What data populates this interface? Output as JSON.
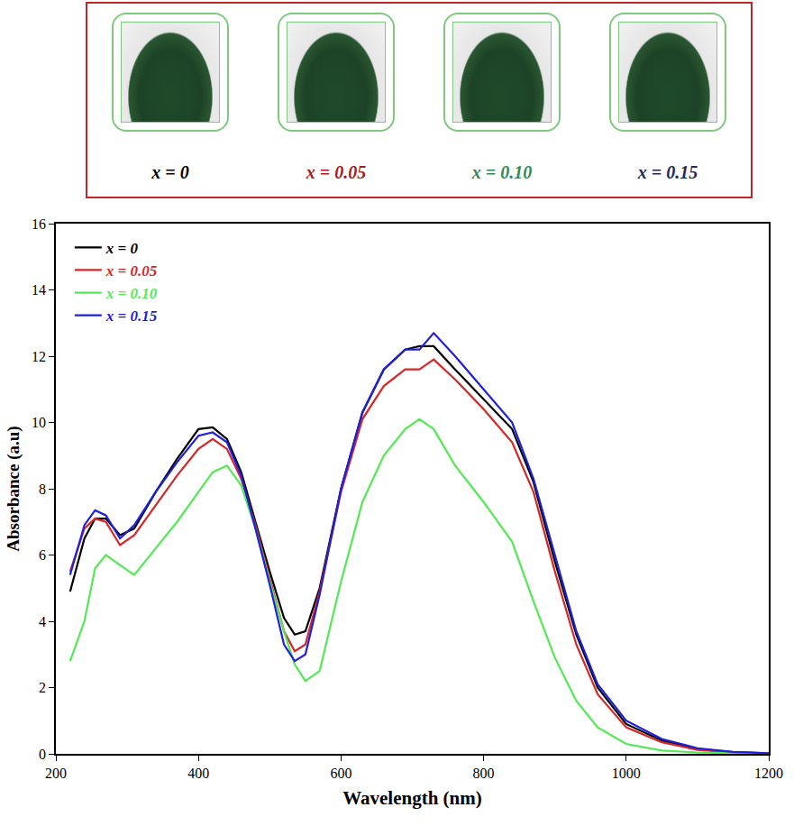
{
  "chart_data": {
    "type": "line",
    "x_label": "Wavelength (nm)",
    "y_label": "Absorbance (a.u)",
    "x": [
      220,
      240,
      255,
      270,
      290,
      310,
      340,
      370,
      400,
      420,
      440,
      460,
      480,
      500,
      520,
      535,
      550,
      570,
      600,
      630,
      660,
      690,
      710,
      730,
      760,
      800,
      840,
      870,
      900,
      930,
      960,
      1000,
      1050,
      1100,
      1150,
      1200
    ],
    "series": [
      {
        "name": "x = 0",
        "color": "#000000",
        "values": [
          4.9,
          6.5,
          7.1,
          7.1,
          6.6,
          6.8,
          7.9,
          8.9,
          9.8,
          9.85,
          9.5,
          8.5,
          7.0,
          5.5,
          4.1,
          3.6,
          3.7,
          5.0,
          8.0,
          10.3,
          11.6,
          12.2,
          12.3,
          12.3,
          11.6,
          10.7,
          9.8,
          8.2,
          5.8,
          3.6,
          2.0,
          0.9,
          0.4,
          0.15,
          0.05,
          0.02
        ]
      },
      {
        "name": "x = 0.05",
        "color": "#d62728",
        "values": [
          5.5,
          6.8,
          7.1,
          7.0,
          6.3,
          6.6,
          7.5,
          8.4,
          9.2,
          9.5,
          9.2,
          8.3,
          6.9,
          5.3,
          3.7,
          3.1,
          3.3,
          4.9,
          7.9,
          10.1,
          11.1,
          11.6,
          11.6,
          11.9,
          11.3,
          10.4,
          9.4,
          7.9,
          5.5,
          3.3,
          1.8,
          0.8,
          0.35,
          0.12,
          0.04,
          0.02
        ]
      },
      {
        "name": "x = 0.10",
        "color": "#55e855",
        "values": [
          2.8,
          4.0,
          5.6,
          6.0,
          5.7,
          5.4,
          6.2,
          7.0,
          7.9,
          8.5,
          8.7,
          8.1,
          6.8,
          5.2,
          3.7,
          2.7,
          2.2,
          2.5,
          5.2,
          7.6,
          9.0,
          9.8,
          10.1,
          9.8,
          8.7,
          7.6,
          6.4,
          4.6,
          2.9,
          1.6,
          0.8,
          0.3,
          0.1,
          0.04,
          0.02,
          0.01
        ]
      },
      {
        "name": "x = 0.15",
        "color": "#1f1fe0",
        "values": [
          5.4,
          6.9,
          7.35,
          7.2,
          6.5,
          6.9,
          7.9,
          8.8,
          9.6,
          9.7,
          9.4,
          8.4,
          6.8,
          5.1,
          3.3,
          2.8,
          3.0,
          4.8,
          8.0,
          10.3,
          11.6,
          12.2,
          12.2,
          12.7,
          12.0,
          11.0,
          10.0,
          8.3,
          6.0,
          3.7,
          2.1,
          1.0,
          0.45,
          0.17,
          0.06,
          0.02
        ]
      }
    ],
    "xlim": [
      200,
      1200
    ],
    "xticks": [
      200,
      400,
      600,
      800,
      1000,
      1200
    ],
    "ylim": [
      0,
      16
    ],
    "yticks": [
      0,
      2,
      4,
      6,
      8,
      10,
      12,
      14,
      16
    ],
    "grid": false,
    "legend": "top left",
    "annotations": [
      {
        "text": "x = 0",
        "color": "#000000"
      },
      {
        "text": "x = 0.05",
        "color": "#a61e22"
      },
      {
        "text": "x = 0.10",
        "color": "#2e8b57"
      },
      {
        "text": "x = 0.15",
        "color": "#1f2a5a"
      }
    ]
  }
}
